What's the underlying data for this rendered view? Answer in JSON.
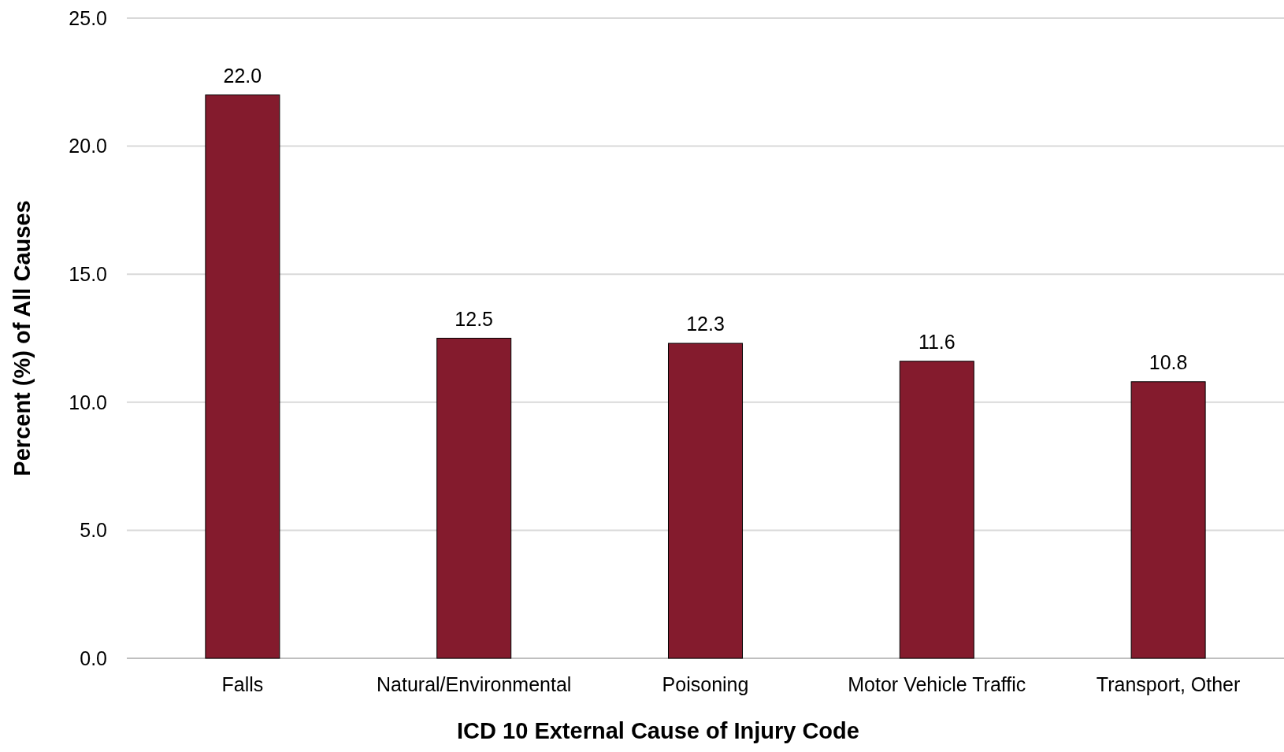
{
  "chart_data": {
    "type": "bar",
    "xlabel": "ICD 10 External Cause of Injury Code",
    "ylabel": "Percent (%) of All Causes",
    "categories": [
      "Falls",
      "Natural/Environmental",
      "Poisoning",
      "Motor Vehicle Traffic",
      "Transport, Other"
    ],
    "values": [
      22.0,
      12.5,
      12.3,
      11.6,
      10.8
    ],
    "value_labels": [
      "22.0",
      "12.5",
      "12.3",
      "11.6",
      "10.8"
    ],
    "color": "#841b2d",
    "ylim": [
      0,
      25
    ],
    "yticks": [
      {
        "value": 0,
        "label": "0.0"
      },
      {
        "value": 5,
        "label": "5.0"
      },
      {
        "value": 10,
        "label": "10.0"
      },
      {
        "value": 15,
        "label": "15.0"
      },
      {
        "value": 20,
        "label": "20.0"
      },
      {
        "value": 25,
        "label": "25.0"
      }
    ],
    "grid": "y"
  }
}
